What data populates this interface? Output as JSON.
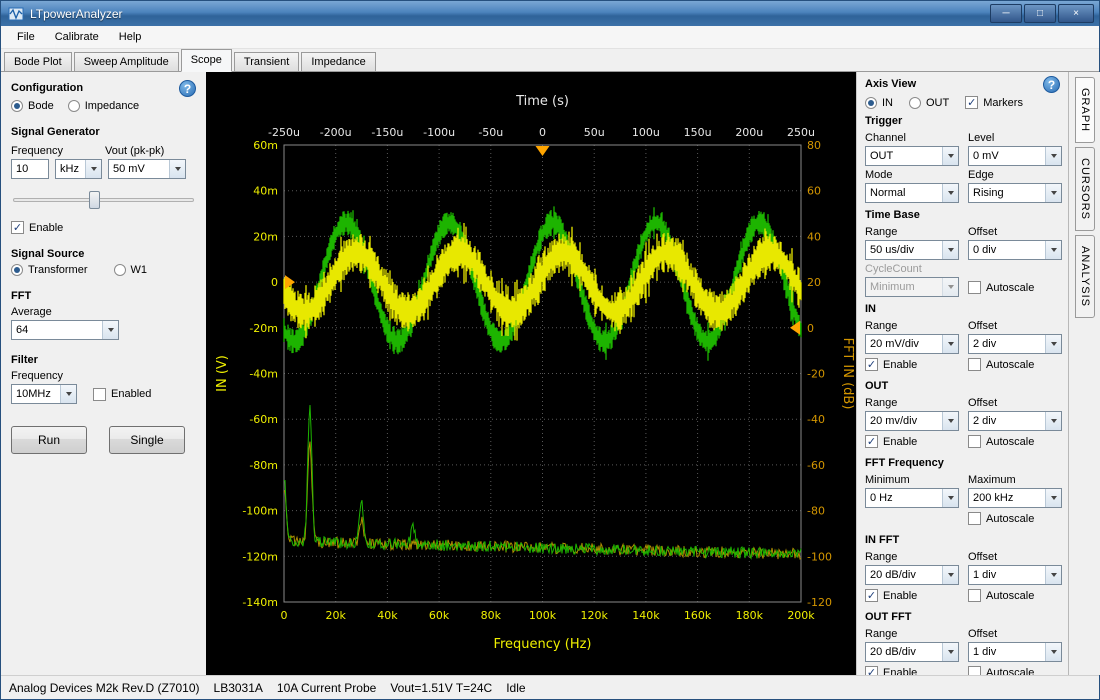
{
  "window": {
    "title": "LTpowerAnalyzer"
  },
  "icons": {
    "minimize": "─",
    "maximize": "□",
    "close": "×",
    "help": "?"
  },
  "menu": {
    "items": [
      "File",
      "Calibrate",
      "Help"
    ]
  },
  "tabs": {
    "items": [
      "Bode Plot",
      "Sweep Amplitude",
      "Scope",
      "Transient",
      "Impedance"
    ],
    "selected": "Scope"
  },
  "left_panel": {
    "configuration": {
      "title": "Configuration",
      "bode": "Bode",
      "impedance": "Impedance",
      "selected": "Bode"
    },
    "signal_generator": {
      "title": "Signal Generator",
      "frequency_label": "Frequency",
      "frequency_value": "10",
      "frequency_unit": "kHz",
      "vout_label": "Vout (pk-pk)",
      "vout_value": "50 mV",
      "enable_label": "Enable",
      "enable_checked": true
    },
    "signal_source": {
      "title": "Signal Source",
      "transformer": "Transformer",
      "w1": "W1",
      "selected": "Transformer"
    },
    "fft": {
      "title": "FFT",
      "average_label": "Average",
      "average_value": "64"
    },
    "filter": {
      "title": "Filter",
      "frequency_label": "Frequency",
      "frequency_value": "10MHz",
      "enabled_label": "Enabled",
      "enabled_checked": false
    },
    "run_button": "Run",
    "single_button": "Single"
  },
  "right_panel": {
    "axis_view": {
      "title": "Axis View",
      "in": "IN",
      "out": "OUT",
      "selected": "IN",
      "markers_label": "Markers",
      "markers_checked": true
    },
    "trigger": {
      "title": "Trigger",
      "channel_label": "Channel",
      "channel_value": "OUT",
      "level_label": "Level",
      "level_value": "0 mV",
      "mode_label": "Mode",
      "mode_value": "Normal",
      "edge_label": "Edge",
      "edge_value": "Rising"
    },
    "time_base": {
      "title": "Time Base",
      "range_label": "Range",
      "range_value": "50 us/div",
      "offset_label": "Offset",
      "offset_value": "0 div",
      "cyclecount_label": "CycleCount",
      "cyclecount_value": "Minimum",
      "autoscale_label": "Autoscale",
      "autoscale_checked": false
    },
    "in_channel": {
      "title": "IN",
      "range_label": "Range",
      "range_value": "20 mV/div",
      "offset_label": "Offset",
      "offset_value": "2 div",
      "enable_label": "Enable",
      "enable_checked": true,
      "autoscale_label": "Autoscale",
      "autoscale_checked": false
    },
    "out_channel": {
      "title": "OUT",
      "range_label": "Range",
      "range_value": "20 mv/div",
      "offset_label": "Offset",
      "offset_value": "2 div",
      "enable_label": "Enable",
      "enable_checked": true,
      "autoscale_label": "Autoscale",
      "autoscale_checked": false
    },
    "fft_frequency": {
      "title": "FFT Frequency",
      "minimum_label": "Minimum",
      "minimum_value": "0 Hz",
      "maximum_label": "Maximum",
      "maximum_value": "200 kHz",
      "autoscale_label": "Autoscale",
      "autoscale_checked": false
    },
    "in_fft": {
      "title": "IN FFT",
      "range_label": "Range",
      "range_value": "20 dB/div",
      "offset_label": "Offset",
      "offset_value": "1 div",
      "enable_label": "Enable",
      "enable_checked": true,
      "autoscale_label": "Autoscale",
      "autoscale_checked": false
    },
    "out_fft": {
      "title": "OUT FFT",
      "range_label": "Range",
      "range_value": "20 dB/div",
      "offset_label": "Offset",
      "offset_value": "1 div",
      "enable_label": "Enable",
      "enable_checked": true,
      "autoscale_label": "Autoscale",
      "autoscale_checked": false
    }
  },
  "side_tabs": {
    "items": [
      "GRAPH",
      "CURSORS",
      "ANALYSIS"
    ]
  },
  "status_bar": {
    "device": "Analog Devices M2k Rev.D (Z7010)",
    "probe_model": "LB3031A",
    "probe_desc": "10A Current Probe",
    "readings": "Vout=1.51V T=24C",
    "state": "Idle"
  },
  "scope": {
    "top_axis": {
      "title": "Time (s)",
      "ticks": [
        "-250u",
        "-200u",
        "-150u",
        "-100u",
        "-50u",
        "0",
        "50u",
        "100u",
        "150u",
        "200u",
        "250u"
      ],
      "color": "#e8e8e8"
    },
    "left_axis": {
      "title": "IN (V)",
      "ticks": [
        "60m",
        "40m",
        "20m",
        "0",
        "-20m",
        "-40m",
        "-60m",
        "-80m",
        "-100m",
        "-120m",
        "-140m"
      ],
      "color": "#f0f000"
    },
    "right_axis": {
      "title": "FFT IN (dB)",
      "ticks": [
        "80",
        "60",
        "40",
        "20",
        "0",
        "-20",
        "-40",
        "-60",
        "-80",
        "-100",
        "-120"
      ],
      "color": "#d49600"
    },
    "bottom_axis": {
      "title": "Frequency (Hz)",
      "ticks": [
        "0",
        "20k",
        "40k",
        "60k",
        "80k",
        "100k",
        "120k",
        "140k",
        "160k",
        "180k",
        "200k"
      ],
      "color": "#f0f000"
    },
    "grid_color": "#585858",
    "border_color": "#8a8a8a",
    "chart_data": {
      "type": "line",
      "time_axis": {
        "label": "Time (s)",
        "range_us": [
          -250,
          250
        ],
        "divisions": 10
      },
      "in_axis": {
        "label": "IN (V)",
        "range_mV": [
          -140,
          60
        ],
        "divisions": 10
      },
      "fft_axis": {
        "label": "FFT IN (dB)",
        "range_dB": [
          -120,
          80
        ],
        "divisions": 10
      },
      "freq_axis": {
        "label": "Frequency (Hz)",
        "range_Hz": [
          0,
          200000
        ],
        "divisions": 10
      },
      "time_traces": [
        {
          "name": "OUT",
          "color": "#1db400",
          "shape": "noisy-sine",
          "frequency_Hz": 10000,
          "amplitude_mV": 26,
          "offset_mV": 0,
          "phase_peak_us": 10,
          "noise_mV": 5
        },
        {
          "name": "IN",
          "color": "#e8e800",
          "shape": "noisy-sine",
          "frequency_Hz": 10000,
          "amplitude_mV": 13,
          "offset_mV": 0,
          "phase_peak_us": 20,
          "noise_mV": 8
        }
      ],
      "fft_traces": [
        {
          "name": "IN FFT",
          "color": "#b09000",
          "noise_floor": -113.5,
          "floor_slope": -5.5,
          "peak_sigma_Hz": 800,
          "peaks": [
            {
              "freq_Hz": 0,
              "level": -90
            },
            {
              "freq_Hz": 10000,
              "level": -70
            },
            {
              "freq_Hz": 30000,
              "level": -104
            }
          ]
        },
        {
          "name": "OUT FFT",
          "color": "#1db400",
          "noise_floor": -113.5,
          "floor_slope": -5.5,
          "peak_sigma_Hz": 800,
          "peaks": [
            {
              "freq_Hz": 0,
              "level": -85
            },
            {
              "freq_Hz": 10000,
              "level": -53
            },
            {
              "freq_Hz": 30000,
              "level": -95
            },
            {
              "freq_Hz": 50000,
              "level": -106
            }
          ]
        }
      ],
      "markers": [
        {
          "name": "time-marker",
          "axis": "time",
          "value_us": 0,
          "color": "#ffa500"
        },
        {
          "name": "in-level-marker",
          "axis": "in",
          "value_mV": 0,
          "color": "#ffa500"
        },
        {
          "name": "fft-level-marker",
          "axis": "fft",
          "value_dB": 0,
          "color": "#ffa500"
        }
      ]
    }
  }
}
